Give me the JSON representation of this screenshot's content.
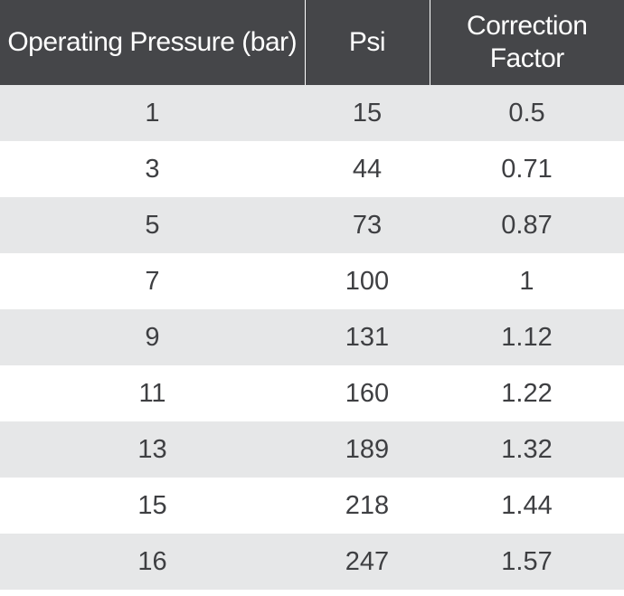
{
  "chart_data": {
    "type": "table",
    "columns": [
      "Operating Pressure (bar)",
      "Psi",
      "Correction Factor"
    ],
    "rows": [
      [
        "1",
        "15",
        "0.5"
      ],
      [
        "3",
        "44",
        "0.71"
      ],
      [
        "5",
        "73",
        "0.87"
      ],
      [
        "7",
        "100",
        "1"
      ],
      [
        "9",
        "131",
        "1.12"
      ],
      [
        "11",
        "160",
        "1.22"
      ],
      [
        "13",
        "189",
        "1.32"
      ],
      [
        "15",
        "218",
        "1.44"
      ],
      [
        "16",
        "247",
        "1.57"
      ]
    ]
  },
  "colors": {
    "header_background": "#454649",
    "header_text": "#ffffff",
    "row_shaded": "#e6e7e8",
    "row_plain": "#ffffff",
    "cell_text": "#3e3f42"
  }
}
